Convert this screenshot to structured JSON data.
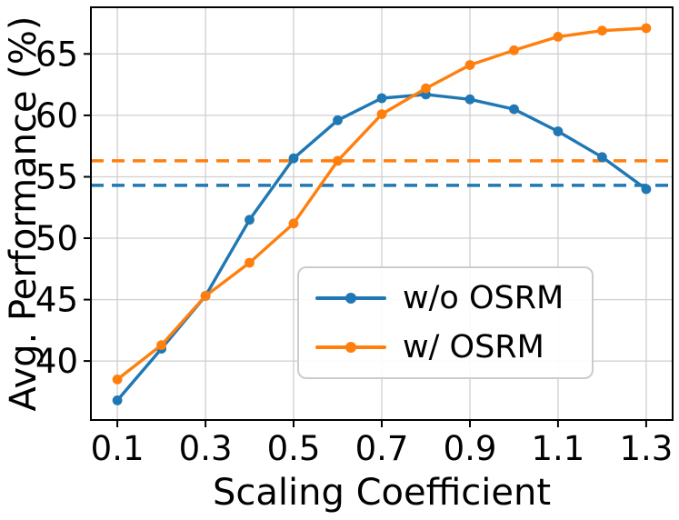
{
  "chart_data": {
    "type": "line",
    "title": "",
    "xlabel": "Scaling Coefficient",
    "ylabel": "Avg. Performance (%)",
    "x": [
      0.1,
      0.2,
      0.3,
      0.4,
      0.5,
      0.6,
      0.7,
      0.8,
      0.9,
      1.0,
      1.1,
      1.2,
      1.3
    ],
    "series": [
      {
        "name": "w/o OSRM",
        "color": "#1f77b4",
        "marker": "circle",
        "values": [
          36.8,
          41.0,
          45.3,
          51.5,
          56.5,
          59.6,
          61.4,
          61.7,
          61.3,
          60.5,
          58.7,
          56.6,
          54.0
        ]
      },
      {
        "name": "w/ OSRM",
        "color": "#ff7f0e",
        "marker": "circle",
        "values": [
          38.5,
          41.3,
          45.3,
          48.0,
          51.2,
          56.3,
          60.1,
          62.2,
          64.1,
          65.3,
          66.4,
          66.9,
          67.1
        ]
      }
    ],
    "baselines": [
      {
        "series": "w/o OSRM",
        "value": 54.3,
        "color": "#1f77b4",
        "style": "dashed"
      },
      {
        "series": "w/ OSRM",
        "value": 56.3,
        "color": "#ff7f0e",
        "style": "dashed"
      }
    ],
    "xticks": [
      0.1,
      0.3,
      0.5,
      0.7,
      0.9,
      1.1,
      1.3
    ],
    "yticks": [
      40,
      45,
      50,
      55,
      60,
      65
    ],
    "xlim": [
      0.04,
      1.36
    ],
    "ylim": [
      35.2,
      68.8
    ],
    "grid": true,
    "grid_color": "#cfcfcf",
    "spine_color": "#000000",
    "legend_position": "lower-center-right"
  }
}
